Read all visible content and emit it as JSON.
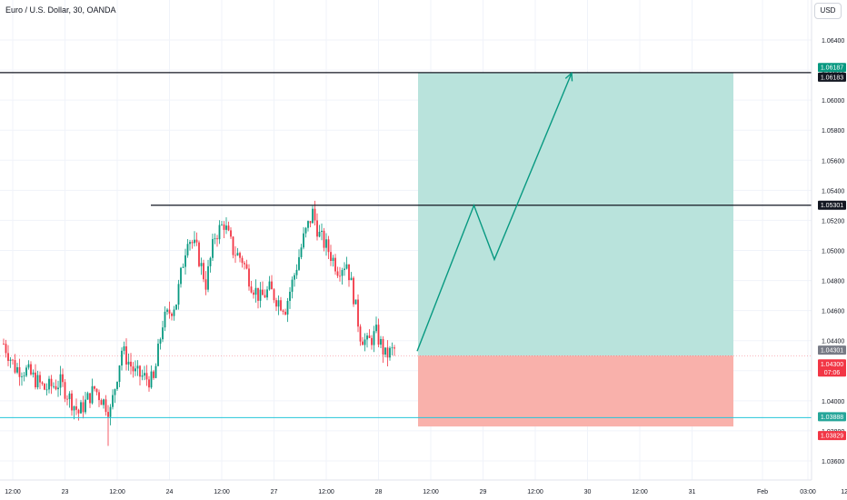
{
  "header": {
    "title": "Euro / U.S. Dollar, 30, OANDA",
    "currency_button": "USD"
  },
  "colors": {
    "up": "#089981",
    "down": "#f23645",
    "profit_zone": "#b9e3dc",
    "loss_zone": "#f9b1ab",
    "cyan_line": "#26c6da",
    "arrow": "#089981",
    "grid": "#f0f3fa",
    "axis_text": "#131722"
  },
  "chart_data": {
    "type": "candlestick",
    "symbol": "EURUSD",
    "timeframe": "30",
    "y_axis": {
      "range": [
        1.0356,
        1.0658
      ],
      "ticks": [
        "1.06400",
        "1.06200",
        "1.06000",
        "1.05800",
        "1.05600",
        "1.05400",
        "1.05200",
        "1.05000",
        "1.04800",
        "1.04600",
        "1.04400",
        "1.04200",
        "1.04000",
        "1.03800",
        "1.03600"
      ],
      "tick_values": [
        1.064,
        1.062,
        1.06,
        1.058,
        1.056,
        1.054,
        1.052,
        1.05,
        1.048,
        1.046,
        1.044,
        1.042,
        1.04,
        1.038,
        1.036
      ]
    },
    "x_axis": {
      "ticks": [
        {
          "label": "12:00",
          "i": 4
        },
        {
          "label": "23",
          "i": 27
        },
        {
          "label": "12:00",
          "i": 50
        },
        {
          "label": "24",
          "i": 73
        },
        {
          "label": "12:00",
          "i": 96
        },
        {
          "label": "27",
          "i": 119
        },
        {
          "label": "12:00",
          "i": 142
        },
        {
          "label": "28",
          "i": 165
        },
        {
          "label": "12:00",
          "i": 188
        },
        {
          "label": "29",
          "i": 211
        },
        {
          "label": "12:00",
          "i": 234
        },
        {
          "label": "30",
          "i": 257
        },
        {
          "label": "12:00",
          "i": 280
        },
        {
          "label": "31",
          "i": 303
        },
        {
          "label": "Feb",
          "i": 334
        },
        {
          "label": "03:00",
          "i": 354
        },
        {
          "label": "12:00",
          "i": 372
        }
      ]
    },
    "ohlc_keypoints": [
      [
        0,
        1.0438
      ],
      [
        5,
        1.0422
      ],
      [
        10,
        1.042
      ],
      [
        18,
        1.0408
      ],
      [
        25,
        1.0412
      ],
      [
        33,
        1.0392
      ],
      [
        40,
        1.0408
      ],
      [
        47,
        1.0393
      ],
      [
        52,
        1.0434
      ],
      [
        58,
        1.0418
      ],
      [
        66,
        1.0413
      ],
      [
        70,
        1.0452
      ],
      [
        76,
        1.0466
      ],
      [
        81,
        1.051
      ],
      [
        85,
        1.05
      ],
      [
        89,
        1.0478
      ],
      [
        93,
        1.051
      ],
      [
        97,
        1.0518
      ],
      [
        101,
        1.05
      ],
      [
        105,
        1.0494
      ],
      [
        109,
        1.0478
      ],
      [
        113,
        1.0468
      ],
      [
        117,
        1.0474
      ],
      [
        120,
        1.0468
      ],
      [
        124,
        1.0462
      ],
      [
        128,
        1.0484
      ],
      [
        132,
        1.0508
      ],
      [
        136,
        1.0525
      ],
      [
        139,
        1.051
      ],
      [
        143,
        1.05
      ],
      [
        147,
        1.0488
      ],
      [
        151,
        1.0492
      ],
      [
        154,
        1.047
      ],
      [
        157,
        1.0444
      ],
      [
        160,
        1.0438
      ],
      [
        164,
        1.0445
      ],
      [
        168,
        1.043
      ],
      [
        172,
        1.0434
      ]
    ],
    "levels": [
      {
        "name": "target",
        "price": 1.06183,
        "label": "1.06183",
        "style": "black"
      },
      {
        "name": "resistance",
        "price": 1.05301,
        "label": "1.05301",
        "style": "black"
      },
      {
        "name": "support",
        "price": 1.03888,
        "label": "1.03888",
        "style": "cyan"
      }
    ],
    "position": {
      "type": "long",
      "entry": 1.043,
      "target": 1.06183,
      "stop": 1.03829,
      "start_i": 172,
      "end_i": 314
    },
    "price_tags": [
      {
        "name": "target-tag-upper",
        "price": 1.06187,
        "label": "1.06187",
        "bg": "#089981",
        "offset": -5
      },
      {
        "name": "target-tag-lower",
        "price": 1.06183,
        "label": "1.06183",
        "bg": "#131722",
        "offset": 5
      },
      {
        "name": "resistance-tag",
        "price": 1.05301,
        "label": "1.05301",
        "bg": "#131722",
        "offset": 0
      },
      {
        "name": "last-price-tag",
        "price": 1.04301,
        "label": "1.04301",
        "bg": "#787b86",
        "offset": -6
      },
      {
        "name": "current-price-tag",
        "price": 1.043,
        "label": "1.04300",
        "sub": "07:06",
        "bg": "#f23645",
        "offset": 9
      },
      {
        "name": "support-tag",
        "price": 1.03888,
        "label": "1.03888",
        "bg": "#26a69a",
        "offset": -1
      },
      {
        "name": "stop-tag",
        "price": 1.03829,
        "label": "1.03829",
        "bg": "#f23645",
        "offset": 10
      }
    ],
    "projection_path": [
      {
        "i": 182,
        "price": 1.0433
      },
      {
        "i": 207,
        "price": 1.053
      },
      {
        "i": 216,
        "price": 1.0494
      },
      {
        "i": 250,
        "price": 1.0618
      }
    ]
  }
}
